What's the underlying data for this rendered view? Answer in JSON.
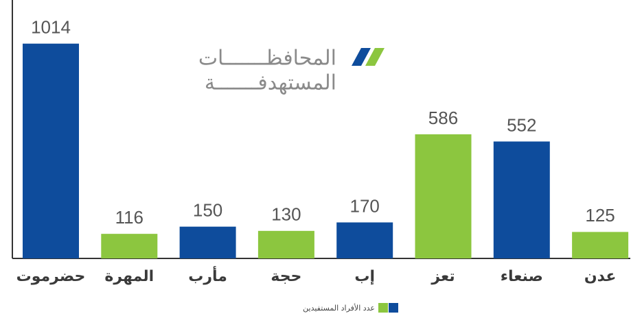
{
  "chart_data": {
    "type": "bar",
    "title": "المحافظـــــــات",
    "subtitle": "المستهدفـــــــة",
    "categories": [
      "حضرموت",
      "المهرة",
      "مأرب",
      "حجة",
      "إب",
      "تعز",
      "صنعاء",
      "عدن"
    ],
    "values": [
      1014,
      116,
      150,
      130,
      170,
      586,
      552,
      125
    ],
    "colors": [
      "#0e4c9c",
      "#8cc63f",
      "#0e4c9c",
      "#8cc63f",
      "#0e4c9c",
      "#8cc63f",
      "#0e4c9c",
      "#8cc63f"
    ],
    "legend": "عدد الأفراد المستفيدين",
    "ylim": [
      0,
      1220
    ]
  }
}
